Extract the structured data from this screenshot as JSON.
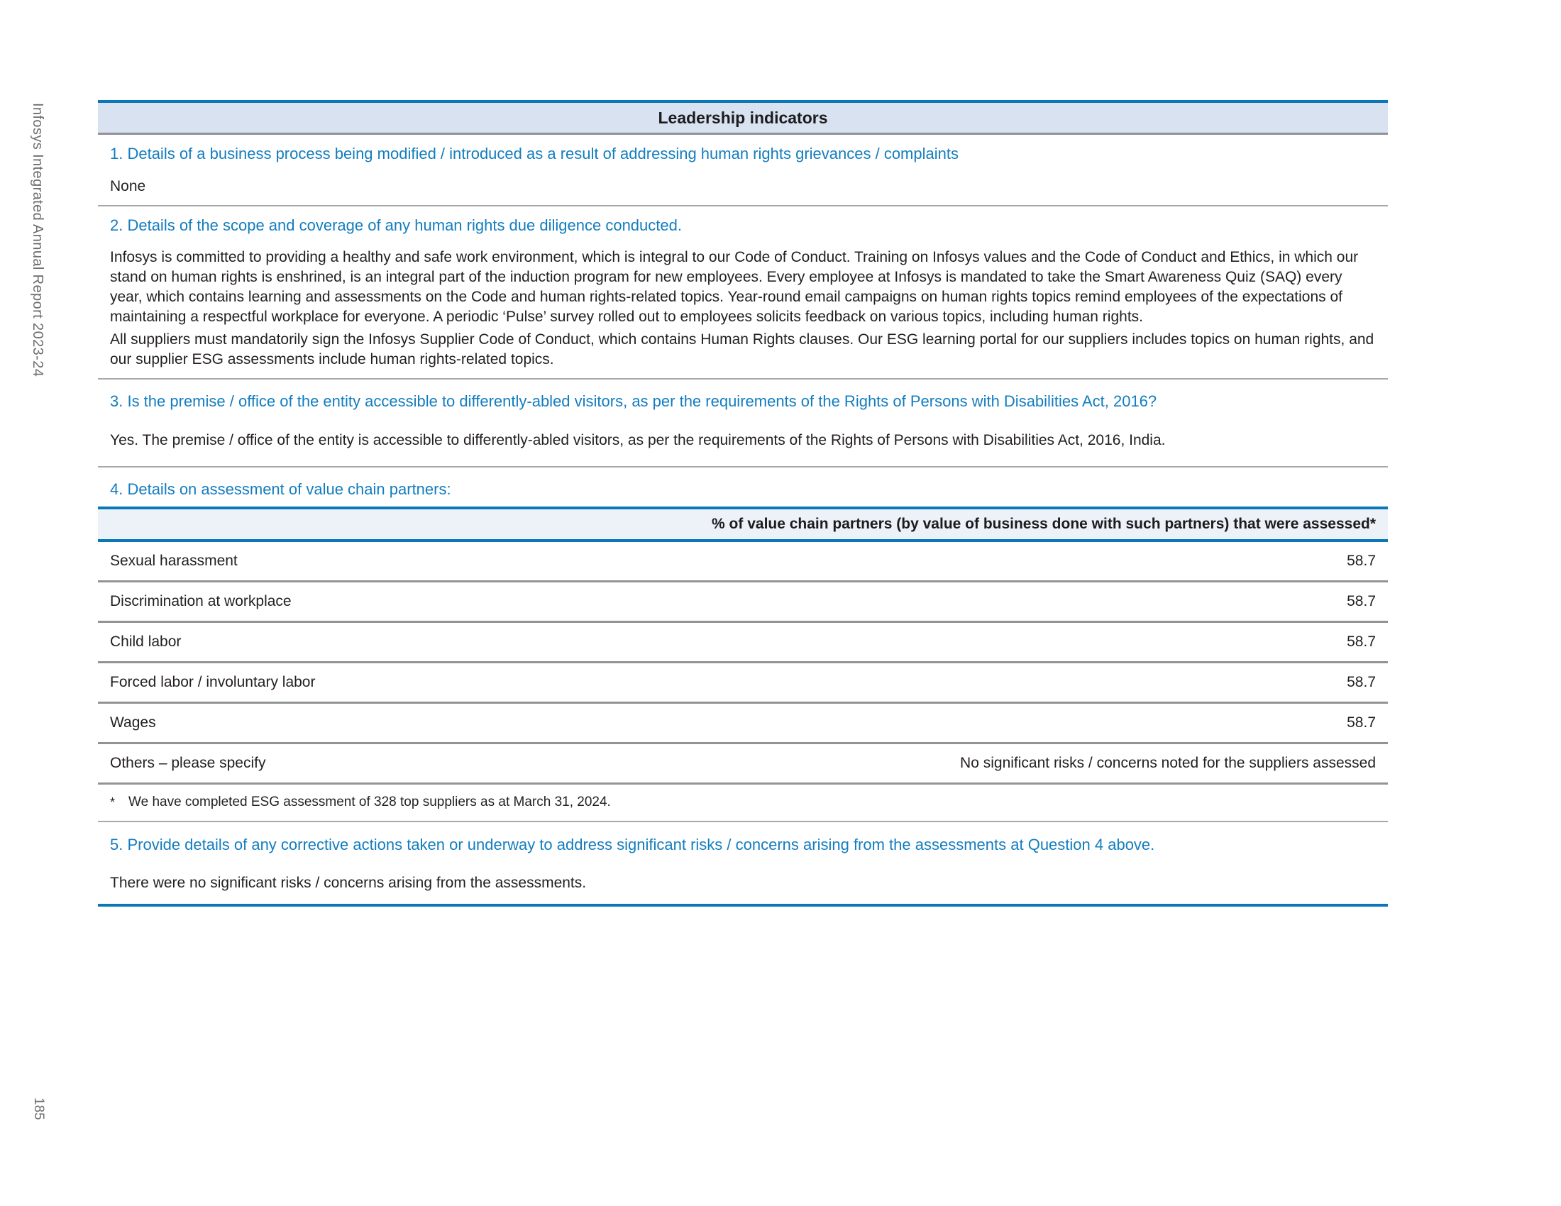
{
  "page": {
    "sidebar_text": "Infosys Integrated Annual Report 2023-24",
    "page_number": "185"
  },
  "header": {
    "title": "Leadership indicators"
  },
  "questions": {
    "q1": {
      "label": "1. Details of a business process being modified / introduced as a result of addressing human rights grievances / complaints",
      "answer": "None"
    },
    "q2": {
      "label": "2. Details of the scope and coverage of any human rights due diligence conducted.",
      "answer_p1": "Infosys is committed to providing a healthy and safe work environment, which is integral to our Code of Conduct. Training on Infosys values and the Code of Conduct and Ethics, in which our stand on human rights is enshrined, is an integral part of the induction program for new employees. Every employee at Infosys is mandated to take the Smart Awareness Quiz (SAQ) every year, which contains learning and assessments on the Code and human rights-related topics. Year-round email campaigns on human rights topics remind employees of the expectations of maintaining a respectful workplace for everyone. A periodic ‘Pulse’ survey rolled out to employees solicits feedback on various topics, including human rights.",
      "answer_p2": "All suppliers must mandatorily sign the Infosys Supplier Code of Conduct, which contains Human Rights clauses. Our ESG learning portal for our suppliers includes topics on human rights, and our supplier ESG assessments include human rights-related topics."
    },
    "q3": {
      "label": "3. Is the premise / office of the entity accessible to differently-abled visitors, as per the requirements of the Rights of Persons with Disabilities Act, 2016?",
      "answer": "Yes. The premise / office of the entity is accessible to differently-abled visitors, as per the requirements of the Rights of Persons with Disabilities Act, 2016, India."
    },
    "q4": {
      "label": "4. Details on assessment of value chain partners:"
    },
    "q5": {
      "label": "5. Provide details of any corrective actions taken or underway to address significant risks / concerns arising from the assessments at Question 4 above.",
      "answer": "There were no significant risks / concerns arising from the assessments."
    }
  },
  "table": {
    "header": "% of value chain partners (by value of business done with such partners) that were assessed*",
    "rows": [
      {
        "label": "Sexual harassment",
        "value": "58.7"
      },
      {
        "label": "Discrimination at workplace",
        "value": "58.7"
      },
      {
        "label": "Child labor",
        "value": "58.7"
      },
      {
        "label": "Forced labor / involuntary labor",
        "value": "58.7"
      },
      {
        "label": "Wages",
        "value": "58.7"
      },
      {
        "label": "Others – please specify",
        "value": "No significant risks / concerns noted for the suppliers assessed"
      }
    ],
    "footnote_marker": "*",
    "footnote": "We have completed ESG assessment of 328 top suppliers as at March 31, 2024."
  },
  "colors": {
    "accent_blue": "#0a78b8",
    "header_bg": "#d8e2f1",
    "table_header_bg": "#edf1f8",
    "question_blue": "#137dbf",
    "body_text": "#231f20",
    "row_divider_gray": "#919497",
    "thin_divider_gray": "#a6a9ac",
    "margin_text_gray": "#6d6d70"
  }
}
